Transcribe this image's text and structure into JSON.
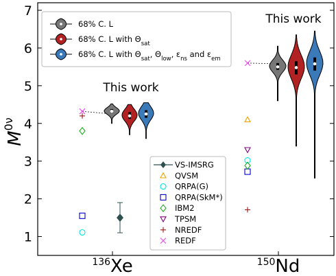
{
  "chart_data": {
    "type": "violin",
    "title": "",
    "ylabel": "M^{0ν}",
    "ylim": [
      0.5,
      7.2
    ],
    "yticks": [
      1,
      2,
      3,
      4,
      5,
      6,
      7
    ],
    "categories": [
      {
        "label": "136Xe",
        "mass": "136",
        "element": "Xe"
      },
      {
        "label": "150Nd",
        "mass": "150",
        "element": "Nd"
      }
    ],
    "annotations": [
      {
        "text": "This work",
        "target": "136Xe"
      },
      {
        "text": "This work",
        "target": "150Nd"
      }
    ],
    "violin_series": [
      {
        "name": "68% C. L",
        "name_parts": {
          "pre": "68% C. L"
        },
        "color": "#777777",
        "data": {
          "136Xe": {
            "median": 4.32,
            "min": 4.0,
            "max": 4.52,
            "q1": 4.28,
            "q3": 4.38,
            "peak": 4.33
          },
          "150Nd": {
            "median": 5.5,
            "min": 4.6,
            "max": 6.05,
            "q1": 5.42,
            "q3": 5.6,
            "peak": 5.52
          }
        }
      },
      {
        "name": "68% C. L with Θsat",
        "name_parts": {
          "pre": "68% C. L with Θ",
          "sub": "sat"
        },
        "color": "#b22222",
        "data": {
          "136Xe": {
            "median": 4.2,
            "min": 3.7,
            "max": 4.5,
            "q1": 4.12,
            "q3": 4.3,
            "peak": 4.22
          },
          "150Nd": {
            "median": 5.48,
            "min": 3.4,
            "max": 6.35,
            "q1": 5.3,
            "q3": 5.65,
            "peak": 5.5
          }
        }
      },
      {
        "name": "68% C. L with Θsat, Θlow, εns and εem",
        "name_parts": {
          "pre": "68% C. L with Θ",
          "sub": "sat",
          "mid": ", Θ",
          "sub2": "low",
          "mid2": ", ε",
          "sub3": "ns",
          "mid3": " and ε",
          "sub4": "em"
        },
        "color": "#3a7ab8",
        "data": {
          "136Xe": {
            "median": 4.25,
            "min": 3.6,
            "max": 4.55,
            "q1": 4.15,
            "q3": 4.35,
            "peak": 4.27
          },
          "150Nd": {
            "median": 5.58,
            "min": 2.55,
            "max": 6.45,
            "q1": 5.4,
            "q3": 5.75,
            "peak": 5.6
          }
        }
      }
    ],
    "errorbar_series": {
      "name": "VS-IMSRG",
      "color": "#2f4f4f",
      "marker": "diamond",
      "points": [
        {
          "category": "136Xe",
          "y": 1.5,
          "yerr_low": 1.1,
          "yerr_high": 1.9
        }
      ]
    },
    "marker_series": [
      {
        "name": "QVSM",
        "marker": "triangle-up",
        "color": "#f0a000",
        "values": {
          "150Nd": 4.1
        }
      },
      {
        "name": "QRPA(G)",
        "marker": "circle",
        "color": "#00e5e5",
        "values": {
          "136Xe": 1.11,
          "150Nd": 3.02
        }
      },
      {
        "name": "QRPA(SkM*)",
        "marker": "square",
        "color": "#0000cc",
        "values": {
          "136Xe": 1.55,
          "150Nd": 2.72
        }
      },
      {
        "name": "IBM2",
        "marker": "diamond",
        "color": "#22aa22",
        "values": {
          "136Xe": 3.8,
          "150Nd": 2.88
        }
      },
      {
        "name": "TPSM",
        "marker": "triangle-down",
        "color": "#800080",
        "values": {
          "150Nd": 3.3
        }
      },
      {
        "name": "NREDF",
        "marker": "plus",
        "color": "#a01818",
        "values": {
          "136Xe": 4.2,
          "150Nd": 1.71
        }
      },
      {
        "name": "REDF",
        "marker": "x",
        "color": "#ee44ee",
        "values": {
          "136Xe": 4.32,
          "150Nd": 5.6
        }
      }
    ]
  }
}
